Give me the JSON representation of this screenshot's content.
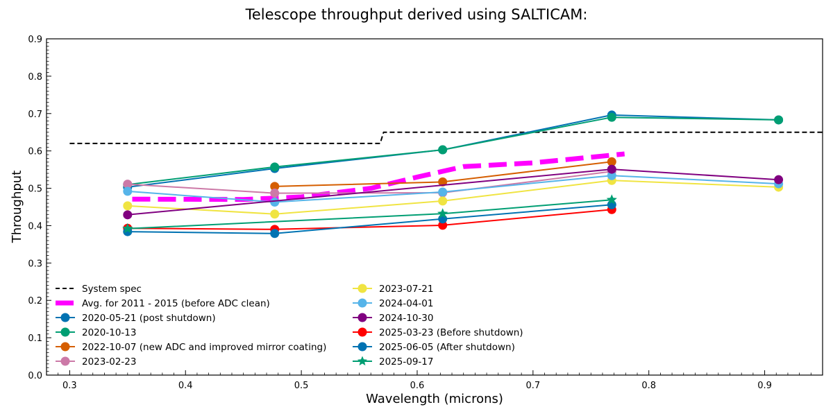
{
  "chart_data": {
    "type": "line",
    "title": "Telescope throughput derived using SALTICAM:",
    "xlabel": "Wavelength (microns)",
    "ylabel": "Throughput",
    "xlim": [
      0.28,
      0.95
    ],
    "ylim": [
      0.0,
      0.9
    ],
    "xticks": [
      0.3,
      0.4,
      0.5,
      0.6,
      0.7,
      0.8,
      0.9
    ],
    "xtick_labels": [
      "0.3",
      "0.4",
      "0.5",
      "0.6",
      "0.7",
      "0.8",
      "0.9"
    ],
    "yticks": [
      0.0,
      0.1,
      0.2,
      0.3,
      0.4,
      0.5,
      0.6,
      0.7,
      0.8,
      0.9
    ],
    "ytick_labels": [
      "0.0",
      "0.1",
      "0.2",
      "0.3",
      "0.4",
      "0.5",
      "0.6",
      "0.7",
      "0.8",
      "0.9"
    ],
    "grid": false,
    "legend_placement": "lower-left (two columns)",
    "series": [
      {
        "name": "System spec",
        "color": "#000000",
        "style": "dashed",
        "marker": "none",
        "x": [
          0.3,
          0.568,
          0.571,
          0.95
        ],
        "y": [
          0.62,
          0.62,
          0.65,
          0.65
        ]
      },
      {
        "name": "Avg. for 2011 - 2015 (before ADC clean)",
        "color": "#ff00ff",
        "style": "thick-dashed",
        "marker": "none",
        "x": [
          0.354,
          0.45,
          0.5,
          0.56,
          0.6,
          0.64,
          0.7,
          0.779
        ],
        "y": [
          0.471,
          0.47,
          0.477,
          0.5,
          0.53,
          0.558,
          0.568,
          0.592
        ]
      },
      {
        "name": "2020-05-21 (post shutdown)",
        "color": "#0072b2",
        "style": "solid",
        "marker": "circle",
        "x": [
          0.35,
          0.477,
          0.622,
          0.768,
          0.912
        ],
        "y": [
          0.503,
          0.553,
          0.603,
          0.696,
          0.683
        ]
      },
      {
        "name": "2020-10-13",
        "color": "#009e73",
        "style": "solid",
        "marker": "circle",
        "x": [
          0.35,
          0.477,
          0.622,
          0.768,
          0.912
        ],
        "y": [
          0.51,
          0.557,
          0.603,
          0.69,
          0.683
        ]
      },
      {
        "name": "2022-10-07 (new ADC and improved mirror coating)",
        "color": "#d55e00",
        "style": "solid",
        "marker": "circle",
        "x": [
          0.477,
          0.622,
          0.768
        ],
        "y": [
          0.505,
          0.517,
          0.571
        ]
      },
      {
        "name": "2023-02-23",
        "color": "#cc79a7",
        "style": "solid",
        "marker": "circle",
        "x": [
          0.35,
          0.477,
          0.622,
          0.768
        ],
        "y": [
          0.511,
          0.487,
          0.488,
          0.545
        ]
      },
      {
        "name": "2023-07-21",
        "color": "#f0e442",
        "style": "solid",
        "marker": "circle",
        "x": [
          0.35,
          0.477,
          0.622,
          0.768,
          0.912
        ],
        "y": [
          0.453,
          0.431,
          0.466,
          0.521,
          0.503
        ]
      },
      {
        "name": "2024-04-01",
        "color": "#56b4e9",
        "style": "solid",
        "marker": "circle",
        "x": [
          0.35,
          0.477,
          0.622,
          0.768,
          0.912
        ],
        "y": [
          0.492,
          0.463,
          0.49,
          0.534,
          0.512
        ]
      },
      {
        "name": "2024-10-30",
        "color": "#800080",
        "style": "solid",
        "marker": "circle",
        "x": [
          0.35,
          0.768,
          0.912
        ],
        "y": [
          0.429,
          0.551,
          0.523
        ]
      },
      {
        "name": "2025-03-23 (Before shutdown)",
        "color": "#ff0000",
        "style": "solid",
        "marker": "circle",
        "x": [
          0.35,
          0.477,
          0.622,
          0.768
        ],
        "y": [
          0.393,
          0.39,
          0.401,
          0.443
        ]
      },
      {
        "name": "2025-06-05 (After shutdown)",
        "color": "#0072b2",
        "style": "solid",
        "marker": "circle",
        "x": [
          0.35,
          0.477,
          0.622,
          0.768
        ],
        "y": [
          0.384,
          0.379,
          0.418,
          0.456
        ]
      },
      {
        "name": "2025-09-17",
        "color": "#009e73",
        "style": "solid",
        "marker": "star",
        "x": [
          0.35,
          0.622,
          0.768
        ],
        "y": [
          0.392,
          0.432,
          0.469
        ]
      }
    ]
  }
}
